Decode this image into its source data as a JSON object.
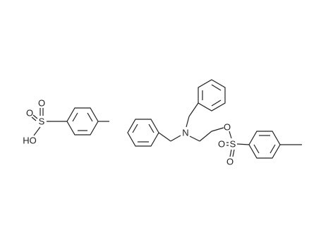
{
  "molecules": [
    {
      "atoms": [
        "O",
        "O",
        "S",
        "HO"
      ]
    },
    {
      "atoms": [
        "N",
        "O",
        "S",
        "O",
        "O"
      ]
    }
  ]
}
